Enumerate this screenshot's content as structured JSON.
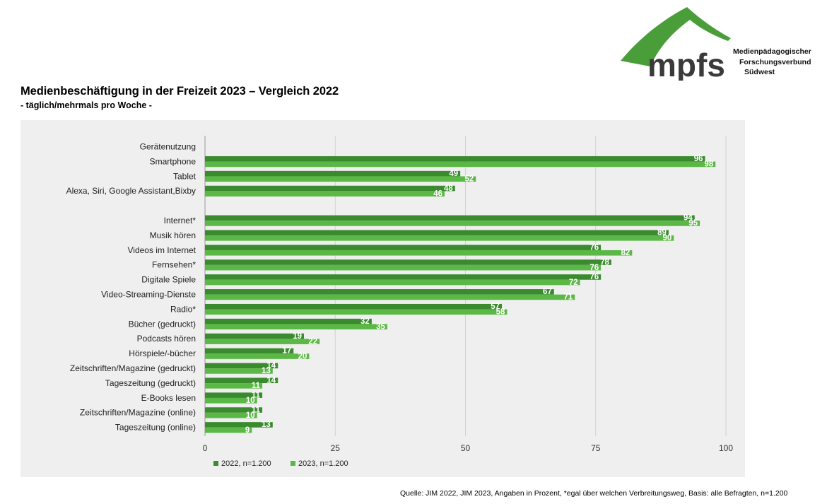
{
  "header": {
    "title": "Medienbeschäftigung in der Freizeit 2023 – Vergleich 2022",
    "subtitle": "- täglich/mehrmals pro Woche -"
  },
  "logo": {
    "wordmark": "mpfs",
    "lines": [
      "Medienpädagogischer",
      "Forschungsverbund",
      "Südwest"
    ],
    "color": "#4a9e3a"
  },
  "source_note": "Quelle: JIM 2022, JIM 2023, Angaben in Prozent, *egal über welchen Verbreitungsweg, Basis: alle Befragten, n=1.200",
  "chart_data": {
    "type": "bar",
    "orientation": "horizontal",
    "xlim": [
      0,
      100
    ],
    "x_ticks": [
      0,
      25,
      50,
      75,
      100
    ],
    "grid": true,
    "legend_position": "bottom-left",
    "categories": [
      "Gerätenutzung",
      "Smartphone",
      "Tablet",
      "Alexa, Siri, Google Assistant,Bixby",
      "",
      "Internet*",
      "Musik hören",
      "Videos im Internet",
      "Fernsehen*",
      "Digitale Spiele",
      "Video-Streaming-Dienste",
      "Radio*",
      "Bücher (gedruckt)",
      "Podcasts hören",
      "Hörspiele/-bücher",
      "Zeitschriften/Magazine (gedruckt)",
      "Tageszeitung (gedruckt)",
      "E-Books lesen",
      "Zeitschriften/Magazine (online)",
      "Tageszeitung (online)"
    ],
    "series": [
      {
        "name": "2022, n=1.200",
        "color": "#3a8a2e",
        "values": [
          null,
          96,
          49,
          48,
          null,
          94,
          89,
          76,
          78,
          76,
          67,
          57,
          32,
          19,
          17,
          14,
          14,
          11,
          11,
          13
        ]
      },
      {
        "name": "2023, n=1.200",
        "color": "#5cb846",
        "values": [
          null,
          98,
          52,
          46,
          null,
          95,
          90,
          82,
          76,
          72,
          71,
          58,
          35,
          22,
          20,
          13,
          11,
          10,
          10,
          9
        ]
      }
    ]
  }
}
